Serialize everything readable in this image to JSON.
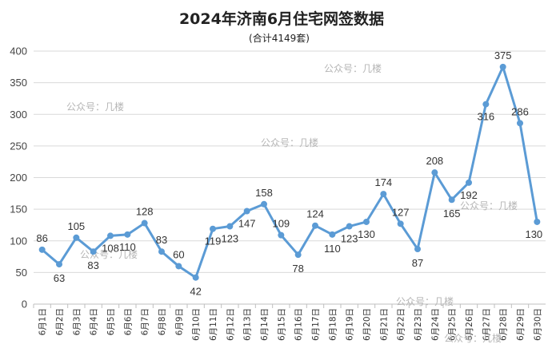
{
  "chart_data": {
    "type": "line",
    "title": "2024年济南6月住宅网签数据",
    "subtitle": "(合计4149套)",
    "xlabel": "",
    "ylabel": "",
    "ylim": [
      0,
      400
    ],
    "yticks": [
      0,
      50,
      100,
      150,
      200,
      250,
      300,
      350,
      400
    ],
    "grid": true,
    "color": "#5b9bd5",
    "categories": [
      "6月1日",
      "6月2日",
      "6月3日",
      "6月4日",
      "6月5日",
      "6月6日",
      "6月7日",
      "6月8日",
      "6月9日",
      "6月10日",
      "6月11日",
      "6月12日",
      "6月13日",
      "6月14日",
      "6月15日",
      "6月16日",
      "6月17日",
      "6月18日",
      "6月19日",
      "6月20日",
      "6月21日",
      "6月22日",
      "6月23日",
      "6月24日",
      "6月25日",
      "6月26日",
      "6月27日",
      "6月28日",
      "6月29日",
      "6月30日"
    ],
    "values": [
      86,
      63,
      105,
      83,
      108,
      110,
      128,
      83,
      60,
      42,
      119,
      123,
      147,
      158,
      109,
      78,
      124,
      110,
      123,
      130,
      174,
      127,
      87,
      208,
      165,
      192,
      316,
      375,
      286,
      130
    ]
  },
  "watermark": "公众号：几楼"
}
